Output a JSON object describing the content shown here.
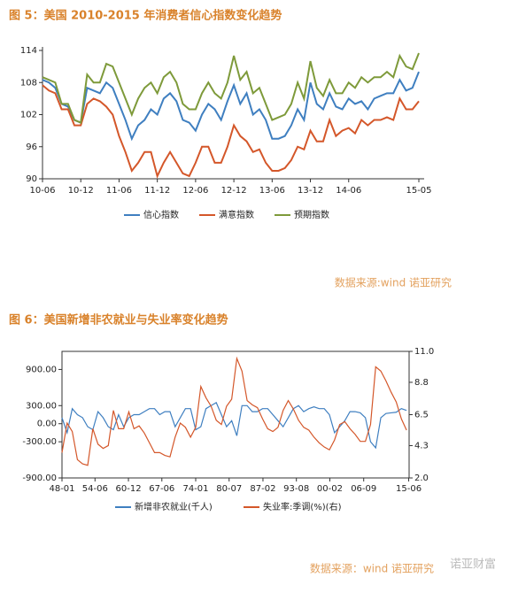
{
  "chart_data": [
    {
      "type": "line",
      "title": "图 5：美国 2010-2015 年消费者信心指数变化趋势",
      "source": "数据来源:wind  诺亚研究",
      "categories": [
        "10-06",
        null,
        null,
        null,
        null,
        null,
        "10-12",
        null,
        null,
        null,
        null,
        null,
        "11-06",
        null,
        null,
        null,
        null,
        null,
        "11-12",
        null,
        null,
        null,
        null,
        null,
        "12-06",
        null,
        null,
        null,
        null,
        null,
        "12-12",
        null,
        null,
        null,
        null,
        null,
        "13-06",
        null,
        null,
        null,
        null,
        null,
        "13-12",
        null,
        null,
        null,
        null,
        null,
        "14-06",
        null,
        null,
        null,
        null,
        null,
        null,
        null,
        null,
        null,
        null,
        "15-05"
      ],
      "ylim": [
        90,
        114
      ],
      "yticks": [
        90,
        96,
        102,
        108,
        114
      ],
      "grid": false,
      "series": [
        {
          "name": "信心指数",
          "color": "#3f7fc0",
          "values": [
            108.5,
            108,
            107,
            104,
            103.5,
            101,
            100.5,
            107,
            106.5,
            106,
            108,
            107,
            104,
            101,
            97.5,
            100,
            101,
            103,
            102,
            105,
            106,
            104.5,
            101,
            100.5,
            99,
            102,
            104,
            103,
            101,
            104.5,
            107.5,
            104,
            106,
            102,
            103,
            101,
            97.5,
            97.5,
            98,
            100,
            103,
            101,
            108,
            104,
            103,
            106,
            103.5,
            103,
            105,
            104,
            104.5,
            103,
            105,
            105.5,
            106,
            106,
            108.5,
            106.5,
            107,
            110
          ]
        },
        {
          "name": "满意指数",
          "color": "#d4572a",
          "values": [
            107.5,
            106.5,
            106,
            103,
            103,
            100,
            100,
            104,
            105,
            104.5,
            103.5,
            102,
            98,
            95,
            91.5,
            93,
            95,
            95,
            90.5,
            93,
            95,
            93,
            91,
            90.5,
            93,
            96,
            96,
            93,
            93,
            96,
            100,
            98,
            97,
            95,
            95.5,
            93,
            91.5,
            91.5,
            92,
            93.5,
            96,
            95.5,
            99,
            97,
            97,
            101,
            98,
            99,
            99.5,
            98.5,
            101,
            100,
            101,
            101,
            101.5,
            101,
            105,
            103,
            103,
            104.5
          ]
        },
        {
          "name": "预期指数",
          "color": "#7e9a3a",
          "values": [
            109,
            108.5,
            108,
            104,
            104,
            101,
            100.5,
            109.5,
            108,
            108,
            111.5,
            111,
            108,
            105,
            102,
            105,
            107,
            108,
            106,
            109,
            110,
            108,
            104,
            103,
            103,
            106,
            108,
            106,
            105,
            108,
            113,
            108.5,
            110,
            106,
            107,
            104,
            101,
            101.5,
            102,
            104,
            108,
            105,
            112,
            107,
            105.5,
            108.5,
            106,
            106,
            108,
            107,
            109,
            108,
            109,
            109,
            110,
            109,
            113,
            111,
            110.5,
            113.5
          ]
        }
      ]
    },
    {
      "type": "line",
      "title": "图 6：美国新增非农就业与失业率变化趋势",
      "source": "数据来源：wind  诺亚研究",
      "xlim": [
        1948,
        2015.5
      ],
      "xticks": [
        {
          "value": 1948,
          "label": "48-01"
        },
        {
          "value": 1954.42,
          "label": "54-06"
        },
        {
          "value": 1960.92,
          "label": "60-12"
        },
        {
          "value": 1967.42,
          "label": "67-06"
        },
        {
          "value": 1974,
          "label": "74-01"
        },
        {
          "value": 1980.5,
          "label": "80-07"
        },
        {
          "value": 1987.08,
          "label": "87-02"
        },
        {
          "value": 1993.58,
          "label": "93-08"
        },
        {
          "value": 2000.08,
          "label": "00-02"
        },
        {
          "value": 2006.67,
          "label": "06-09"
        },
        {
          "value": 2015.42,
          "label": "15-06"
        }
      ],
      "ylim": [
        -900,
        1200
      ],
      "yticks": [
        {
          "value": -900,
          "label": "-900.00"
        },
        {
          "value": -300,
          "label": "-300.00"
        },
        {
          "value": 0,
          "label": "0.00"
        },
        {
          "value": 300,
          "label": "300.00"
        },
        {
          "value": 900,
          "label": "900.00"
        }
      ],
      "y2lim": [
        2,
        11
      ],
      "y2ticks": [
        {
          "value": 2,
          "label": "2.0"
        },
        4.3,
        6.5,
        8.8,
        {
          "value": 11,
          "label": "11.0"
        }
      ],
      "x": [
        1948,
        1949,
        1950,
        1951,
        1952,
        1953,
        1954,
        1955,
        1956,
        1957,
        1958,
        1959,
        1960,
        1961,
        1962,
        1963,
        1964,
        1965,
        1966,
        1967,
        1968,
        1969,
        1970,
        1971,
        1972,
        1973,
        1974,
        1975,
        1976,
        1977,
        1978,
        1979,
        1980,
        1981,
        1982,
        1983,
        1984,
        1985,
        1986,
        1987,
        1988,
        1989,
        1990,
        1991,
        1992,
        1993,
        1994,
        1995,
        1996,
        1997,
        1998,
        1999,
        2000,
        2001,
        2002,
        2003,
        2004,
        2005,
        2006,
        2007,
        2008,
        2009,
        2010,
        2011,
        2012,
        2013,
        2014,
        2015
      ],
      "series": [
        {
          "name": "新增非农就业(千人)",
          "color": "#3f7fc0",
          "values": [
            100,
            -150,
            250,
            150,
            100,
            -50,
            -100,
            200,
            100,
            -50,
            -100,
            150,
            -50,
            100,
            150,
            150,
            200,
            250,
            250,
            150,
            200,
            200,
            -50,
            100,
            250,
            250,
            -100,
            -50,
            250,
            300,
            350,
            150,
            -50,
            50,
            -200,
            300,
            300,
            200,
            200,
            250,
            250,
            150,
            50,
            -50,
            100,
            250,
            300,
            200,
            250,
            280,
            250,
            250,
            150,
            -150,
            -50,
            50,
            200,
            200,
            180,
            100,
            -300,
            -400,
            100,
            170,
            180,
            190,
            250,
            220
          ]
        },
        {
          "name": "失业率:季调(%)(右)",
          "color": "#d4572a",
          "axis": "y2",
          "values": [
            3.8,
            5.9,
            5.3,
            3.3,
            3.0,
            2.9,
            5.5,
            4.4,
            4.1,
            4.3,
            6.8,
            5.5,
            5.5,
            6.7,
            5.5,
            5.7,
            5.2,
            4.5,
            3.8,
            3.8,
            3.6,
            3.5,
            4.9,
            5.9,
            5.6,
            4.9,
            5.6,
            8.5,
            7.7,
            7.1,
            6.1,
            5.8,
            7.1,
            7.6,
            10.5,
            9.6,
            7.5,
            7.2,
            7.0,
            6.2,
            5.5,
            5.3,
            5.6,
            6.8,
            7.5,
            6.9,
            6.1,
            5.6,
            5.4,
            4.9,
            4.5,
            4.2,
            4.0,
            4.7,
            5.8,
            6.0,
            5.5,
            5.1,
            4.6,
            4.6,
            5.8,
            9.9,
            9.6,
            8.9,
            8.1,
            7.4,
            6.2,
            5.4
          ]
        }
      ]
    }
  ],
  "watermark": "诺亚财富"
}
